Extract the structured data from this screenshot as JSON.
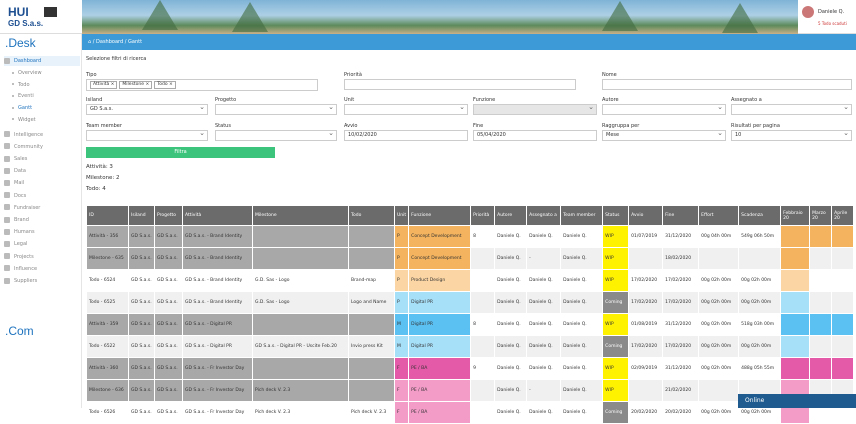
{
  "brand": {
    "logo_main": "HUI",
    "logo_sub": "GD S.a.s.",
    "desk": ".Desk",
    "com": ".Com"
  },
  "user": {
    "name": "Daniele Q.",
    "sub": "5 Todo scaduti"
  },
  "breadcrumb": "⌂  /  Dashboard  /  Gantt",
  "sidebar": {
    "items": [
      {
        "label": "Dashboard",
        "type": "main",
        "active": true
      },
      {
        "label": "Overview",
        "type": "sub"
      },
      {
        "label": "Todo",
        "type": "sub"
      },
      {
        "label": "Eventi",
        "type": "sub"
      },
      {
        "label": "Gantt",
        "type": "sub",
        "active": true
      },
      {
        "label": "Widget",
        "type": "sub"
      },
      {
        "label": "Intelligence",
        "type": "main"
      },
      {
        "label": "Community",
        "type": "main"
      },
      {
        "label": "Sales",
        "type": "main"
      },
      {
        "label": "Data",
        "type": "main"
      },
      {
        "label": "Mail",
        "type": "main"
      },
      {
        "label": "Docs",
        "type": "main"
      },
      {
        "label": "Fundraiser",
        "type": "main"
      },
      {
        "label": "Brand",
        "type": "main"
      },
      {
        "label": "Humans",
        "type": "main"
      },
      {
        "label": "Legal",
        "type": "main"
      },
      {
        "label": "Projects",
        "type": "main"
      },
      {
        "label": "Influence",
        "type": "main"
      },
      {
        "label": "Suppliers",
        "type": "main"
      }
    ]
  },
  "filters": {
    "section_title": "Selezione filtri di ricerca",
    "tipo_label": "Tipo",
    "tipo_tags": [
      "Attività ×",
      "Milestone ×",
      "Todo ×"
    ],
    "priorita_label": "Priorità",
    "nome_label": "Nome",
    "isiland_label": "Isiland",
    "isiland_value": "GD S.a.s.",
    "progetto_label": "Progetto",
    "unit_label": "Unit",
    "funzione_label": "Funzione",
    "autore_label": "Autore",
    "assegnato_label": "Assegnato a",
    "team_label": "Team member",
    "status_label": "Status",
    "avvio_label": "Avvio",
    "avvio_value": "10/02/2020",
    "fine_label": "Fine",
    "fine_value": "05/04/2020",
    "raggruppa_label": "Raggruppa per",
    "raggruppa_value": "Mese",
    "risultati_label": "Risultati per pagina",
    "risultati_value": "10",
    "button": "Filtra"
  },
  "counts": {
    "attivita": "Attività: 3",
    "milestone": "Milestone: 2",
    "todo": "Todo: 4"
  },
  "table": {
    "headers": [
      "ID",
      "Isiland",
      "Progetto",
      "Attività",
      "Milestone",
      "Todo",
      "Unit",
      "Funzione",
      "Priorità",
      "Autore",
      "Assegnato a",
      "Team member",
      "Status",
      "Avvio",
      "Fine",
      "Effort",
      "Scadenza",
      "Febbraio 20",
      "Marzo 20",
      "Aprile 20"
    ],
    "rows": [
      {
        "id": "Attività - 356",
        "isiland": "GD S.a.s.",
        "progetto": "GD S.a.s.",
        "attivita": "GD S.a.s. - Brand Identity",
        "milestone": "",
        "todo": "",
        "unit": "P",
        "funzione": "Concept Development",
        "priorita": "8",
        "autore": "Daniele Q.",
        "assegnato": "Daniele Q.",
        "team": "Daniele Q.",
        "status": "WIP",
        "avvio": "01/07/2019",
        "fine": "31/12/2020",
        "effort": "00g 04h 00m",
        "scadenza": "549g 06h 50m",
        "row": "d",
        "uc": "col-or",
        "gantt": [
          "col-or",
          "col-or",
          "col-or"
        ]
      },
      {
        "id": "Milestone - 635",
        "isiland": "GD S.a.s.",
        "progetto": "GD S.a.s.",
        "attivita": "GD S.a.s. - Brand Identity",
        "milestone": "",
        "todo": "",
        "unit": "P",
        "funzione": "Concept Development",
        "priorita": "",
        "autore": "Daniele Q.",
        "assegnato": "-",
        "team": "Daniele Q.",
        "status": "WIP",
        "avvio": "",
        "fine": "18/02/2020",
        "effort": "",
        "scadenza": "",
        "row": "d",
        "uc": "col-or",
        "gantt": [
          "col-or",
          "",
          ""
        ]
      },
      {
        "id": "Todo - 6524",
        "isiland": "GD S.a.s.",
        "progetto": "GD S.a.s.",
        "attivita": "GD S.a.s. - Brand Identity",
        "milestone": "G.D. Sas - Logo",
        "todo": "Brand-map",
        "unit": "P",
        "funzione": "Product Design",
        "priorita": "",
        "autore": "Daniele Q.",
        "assegnato": "Daniele Q.",
        "team": "Daniele Q.",
        "status": "WIP",
        "avvio": "17/02/2020",
        "fine": "17/02/2020",
        "effort": "00g 02h 00m",
        "scadenza": "00g 02h 00m",
        "row": "w",
        "uc": "col-orl",
        "gantt": [
          "col-orl",
          "",
          ""
        ]
      },
      {
        "id": "Todo - 6525",
        "isiland": "GD S.a.s.",
        "progetto": "GD S.a.s.",
        "attivita": "GD S.a.s. - Brand Identity",
        "milestone": "G.D. Sas - Logo",
        "todo": "Logo and Name",
        "unit": "P",
        "funzione": "Digital PR",
        "priorita": "",
        "autore": "Daniele Q.",
        "assegnato": "Daniele Q.",
        "team": "Daniele Q.",
        "status": "Coming",
        "avvio": "17/02/2020",
        "fine": "17/02/2020",
        "effort": "00g 02h 00m",
        "scadenza": "00g 02h 00m",
        "row": "w",
        "uc": "col-bll",
        "gantt": [
          "col-bll",
          "",
          ""
        ]
      },
      {
        "id": "Attività - 359",
        "isiland": "GD S.a.s.",
        "progetto": "GD S.a.s.",
        "attivita": "GD S.a.s. - Digital PR",
        "milestone": "",
        "todo": "",
        "unit": "M",
        "funzione": "Digital PR",
        "priorita": "8",
        "autore": "Daniele Q.",
        "assegnato": "Daniele Q.",
        "team": "Daniele Q.",
        "status": "WIP",
        "avvio": "01/08/2019",
        "fine": "31/12/2020",
        "effort": "00g 02h 00m",
        "scadenza": "518g 03h 00m",
        "row": "d",
        "uc": "col-bl",
        "gantt": [
          "col-bl",
          "col-bl",
          "col-bl"
        ]
      },
      {
        "id": "Todo - 6522",
        "isiland": "GD S.a.s.",
        "progetto": "GD S.a.s.",
        "attivita": "GD S.a.s. - Digital PR",
        "milestone": "GD S.a.s. - Digital PR - Uscite Feb.20",
        "todo": "Invio press Kit",
        "unit": "M",
        "funzione": "Digital PR",
        "priorita": "",
        "autore": "Daniele Q.",
        "assegnato": "Daniele Q.",
        "team": "Daniele Q.",
        "status": "Coming",
        "avvio": "17/02/2020",
        "fine": "17/02/2020",
        "effort": "00g 02h 00m",
        "scadenza": "00g 02h 00m",
        "row": "w",
        "uc": "col-bll",
        "gantt": [
          "col-bll",
          "",
          ""
        ]
      },
      {
        "id": "Attività - 360",
        "isiland": "GD S.a.s.",
        "progetto": "GD S.a.s.",
        "attivita": "GD S.a.s. - Fr Investor Day",
        "milestone": "",
        "todo": "",
        "unit": "F",
        "funzione": "PE / BA",
        "priorita": "9",
        "autore": "Daniele Q.",
        "assegnato": "Daniele Q.",
        "team": "Daniele Q.",
        "status": "WIP",
        "avvio": "02/09/2019",
        "fine": "31/12/2020",
        "effort": "00g 02h 00m",
        "scadenza": "488g 05h 55m",
        "row": "d",
        "uc": "col-pk",
        "gantt": [
          "col-pk",
          "col-pk",
          "col-pk"
        ]
      },
      {
        "id": "Milestone - 636",
        "isiland": "GD S.a.s.",
        "progetto": "GD S.a.s.",
        "attivita": "GD S.a.s. - Fr Investor Day",
        "milestone": "Pich deck V. 2.3",
        "todo": "",
        "unit": "F",
        "funzione": "PE / BA",
        "priorita": "",
        "autore": "Daniele Q.",
        "assegnato": "-",
        "team": "Daniele Q.",
        "status": "WIP",
        "avvio": "",
        "fine": "21/02/2020",
        "effort": "",
        "scadenza": "",
        "row": "d",
        "uc": "col-pkl",
        "gantt": [
          "col-pkl",
          "",
          ""
        ]
      },
      {
        "id": "Todo - 6526",
        "isiland": "GD S.a.s.",
        "progetto": "GD S.a.s.",
        "attivita": "GD S.a.s. - Fr Investor Day",
        "milestone": "Pich deck V. 2.3",
        "todo": "Pich deck V. 2.3",
        "unit": "F",
        "funzione": "PE / BA",
        "priorita": "",
        "autore": "Daniele Q.",
        "assegnato": "Daniele Q.",
        "team": "Daniele Q.",
        "status": "Coming",
        "avvio": "20/02/2020",
        "fine": "20/02/2020",
        "effort": "00g 02h 00m",
        "scadenza": "00g 02h 00m",
        "row": "w",
        "uc": "col-pkl",
        "gantt": [
          "col-pkl",
          "",
          ""
        ]
      }
    ]
  },
  "chat": {
    "label": "Online"
  }
}
